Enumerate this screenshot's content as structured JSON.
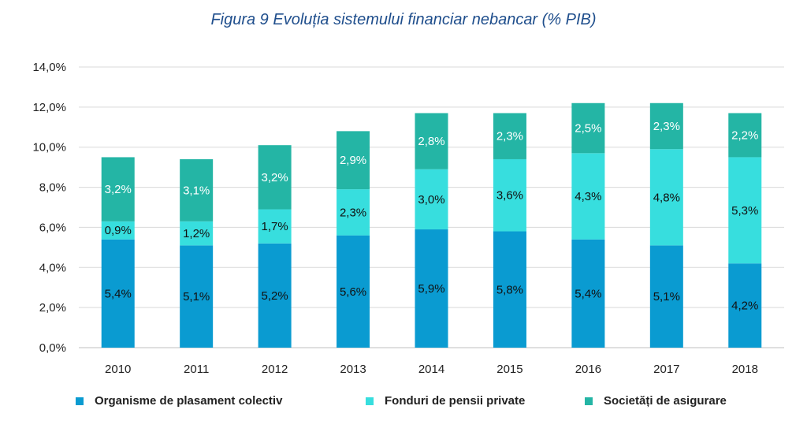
{
  "chart_data": {
    "type": "bar",
    "stacked": true,
    "title": "Figura 9 Evoluția sistemului financiar nebancar (% PIB)",
    "categories": [
      "2010",
      "2011",
      "2012",
      "2013",
      "2014",
      "2015",
      "2016",
      "2017",
      "2018"
    ],
    "series": [
      {
        "name": "Organisme de plasament colectiv",
        "color": "#0a9bd1",
        "values": [
          5.4,
          5.1,
          5.2,
          5.6,
          5.9,
          5.8,
          5.4,
          5.1,
          4.2
        ],
        "labels": [
          "5,4%",
          "5,1%",
          "5,2%",
          "5,6%",
          "5,9%",
          "5,8%",
          "5,4%",
          "5,1%",
          "4,2%"
        ]
      },
      {
        "name": "Fonduri de pensii private",
        "color": "#37dede",
        "values": [
          0.9,
          1.2,
          1.7,
          2.3,
          3.0,
          3.6,
          4.3,
          4.8,
          5.3
        ],
        "labels": [
          "0,9%",
          "1,2%",
          "1,7%",
          "2,3%",
          "3,0%",
          "3,6%",
          "4,3%",
          "4,8%",
          "5,3%"
        ]
      },
      {
        "name": "Societăți de asigurare",
        "color": "#24b5a5",
        "values": [
          3.2,
          3.1,
          3.2,
          2.9,
          2.8,
          2.3,
          2.5,
          2.3,
          2.2
        ],
        "labels": [
          "3,2%",
          "3,1%",
          "3,2%",
          "2,9%",
          "2,8%",
          "2,3%",
          "2,5%",
          "2,3%",
          "2,2%"
        ]
      }
    ],
    "ylim": [
      0,
      14
    ],
    "yticks": [
      "0,0%",
      "2,0%",
      "4,0%",
      "6,0%",
      "8,0%",
      "10,0%",
      "12,0%",
      "14,0%"
    ],
    "grid": true,
    "legend_position": "bottom"
  }
}
